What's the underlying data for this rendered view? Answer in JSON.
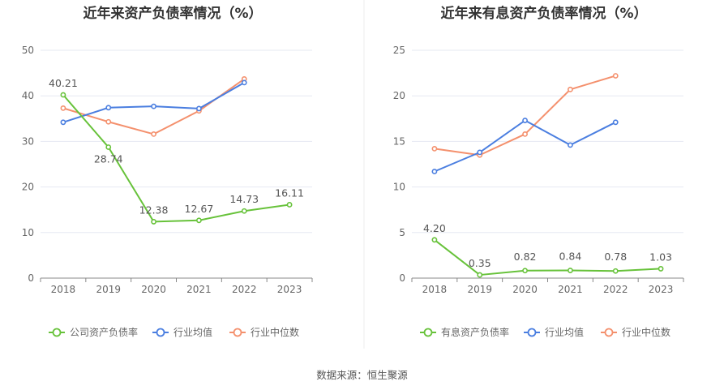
{
  "source_note": "数据来源：恒生聚源",
  "colors": {
    "green": "#67c23a",
    "blue": "#4a7ee0",
    "orange": "#f4906d",
    "axis": "#888888",
    "grid": "#e6e8f2",
    "divider": "#eeeeee"
  },
  "chart_data": [
    {
      "type": "line",
      "title": "近年来资产负债率情况（%）",
      "categories": [
        "2018",
        "2019",
        "2020",
        "2021",
        "2022",
        "2023"
      ],
      "ylim": [
        0,
        50
      ],
      "yticks": [
        "0",
        "10",
        "20",
        "30",
        "40",
        "50"
      ],
      "grid": true,
      "legend_position": "bottom",
      "series": [
        {
          "name": "公司资产负债率",
          "color": "#67c23a",
          "values": [
            40.21,
            28.74,
            12.38,
            12.67,
            14.73,
            16.11
          ],
          "labels": [
            "40.21",
            "28.74",
            "12.38",
            "12.67",
            "14.73",
            "16.11"
          ]
        },
        {
          "name": "行业均值",
          "color": "#4a7ee0",
          "values": [
            34.2,
            37.4,
            37.7,
            37.2,
            42.9,
            null
          ]
        },
        {
          "name": "行业中位数",
          "color": "#f4906d",
          "values": [
            37.3,
            34.3,
            31.6,
            36.7,
            43.7,
            null
          ]
        }
      ]
    },
    {
      "type": "line",
      "title": "近年来有息资产负债率情况（%）",
      "categories": [
        "2018",
        "2019",
        "2020",
        "2021",
        "2022",
        "2023"
      ],
      "ylim": [
        0,
        25
      ],
      "yticks": [
        "0",
        "5",
        "10",
        "15",
        "20",
        "25"
      ],
      "grid": true,
      "legend_position": "bottom",
      "series": [
        {
          "name": "有息资产负债率",
          "color": "#67c23a",
          "values": [
            4.2,
            0.35,
            0.82,
            0.84,
            0.78,
            1.03
          ],
          "labels": [
            "4.20",
            "0.35",
            "0.82",
            "0.84",
            "0.78",
            "1.03"
          ]
        },
        {
          "name": "行业均值",
          "color": "#4a7ee0",
          "values": [
            11.7,
            13.8,
            17.3,
            14.6,
            17.1,
            null
          ]
        },
        {
          "name": "行业中位数",
          "color": "#f4906d",
          "values": [
            14.2,
            13.5,
            15.8,
            20.7,
            22.2,
            null
          ]
        }
      ]
    }
  ]
}
